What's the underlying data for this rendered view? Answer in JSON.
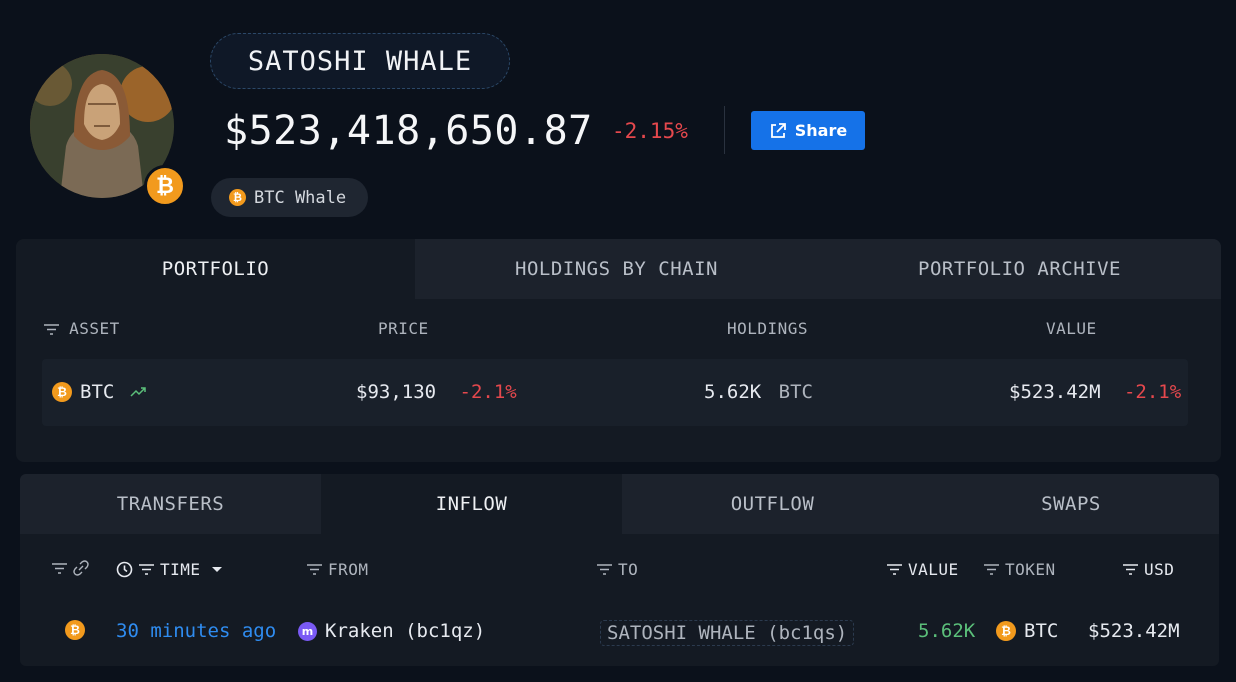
{
  "profile": {
    "name": "SATOSHI WHALE",
    "total_value": "$523,418,650.87",
    "total_change": "-2.15%",
    "share_label": "Share",
    "tag": "BTC Whale",
    "badge_symbol": "₿"
  },
  "portfolio": {
    "tabs": [
      "PORTFOLIO",
      "HOLDINGS BY CHAIN",
      "PORTFOLIO ARCHIVE"
    ],
    "active_tab": "PORTFOLIO",
    "columns": {
      "asset": "ASSET",
      "price": "PRICE",
      "holdings": "HOLDINGS",
      "value": "VALUE"
    },
    "rows": [
      {
        "asset": "BTC",
        "price": "$93,130",
        "price_change": "-2.1%",
        "holdings": "5.62K",
        "holdings_unit": "BTC",
        "value": "$523.42M",
        "value_change": "-2.1%"
      }
    ]
  },
  "transfers": {
    "tabs": [
      "TRANSFERS",
      "INFLOW",
      "OUTFLOW",
      "SWAPS"
    ],
    "active_tab": "INFLOW",
    "columns": {
      "time": "TIME",
      "from": "FROM",
      "to": "TO",
      "value": "VALUE",
      "token": "TOKEN",
      "usd": "USD"
    },
    "rows": [
      {
        "time": "30 minutes ago",
        "from": "Kraken (bc1qz)",
        "to": "SATOSHI WHALE (bc1qs)",
        "value": "5.62K",
        "token": "BTC",
        "usd": "$523.42M"
      }
    ]
  },
  "colors": {
    "background": "#0b111b",
    "accent": "#1572e8",
    "negative": "#e5484d",
    "positive": "#5bbf7a",
    "bitcoin": "#f29a1d"
  }
}
